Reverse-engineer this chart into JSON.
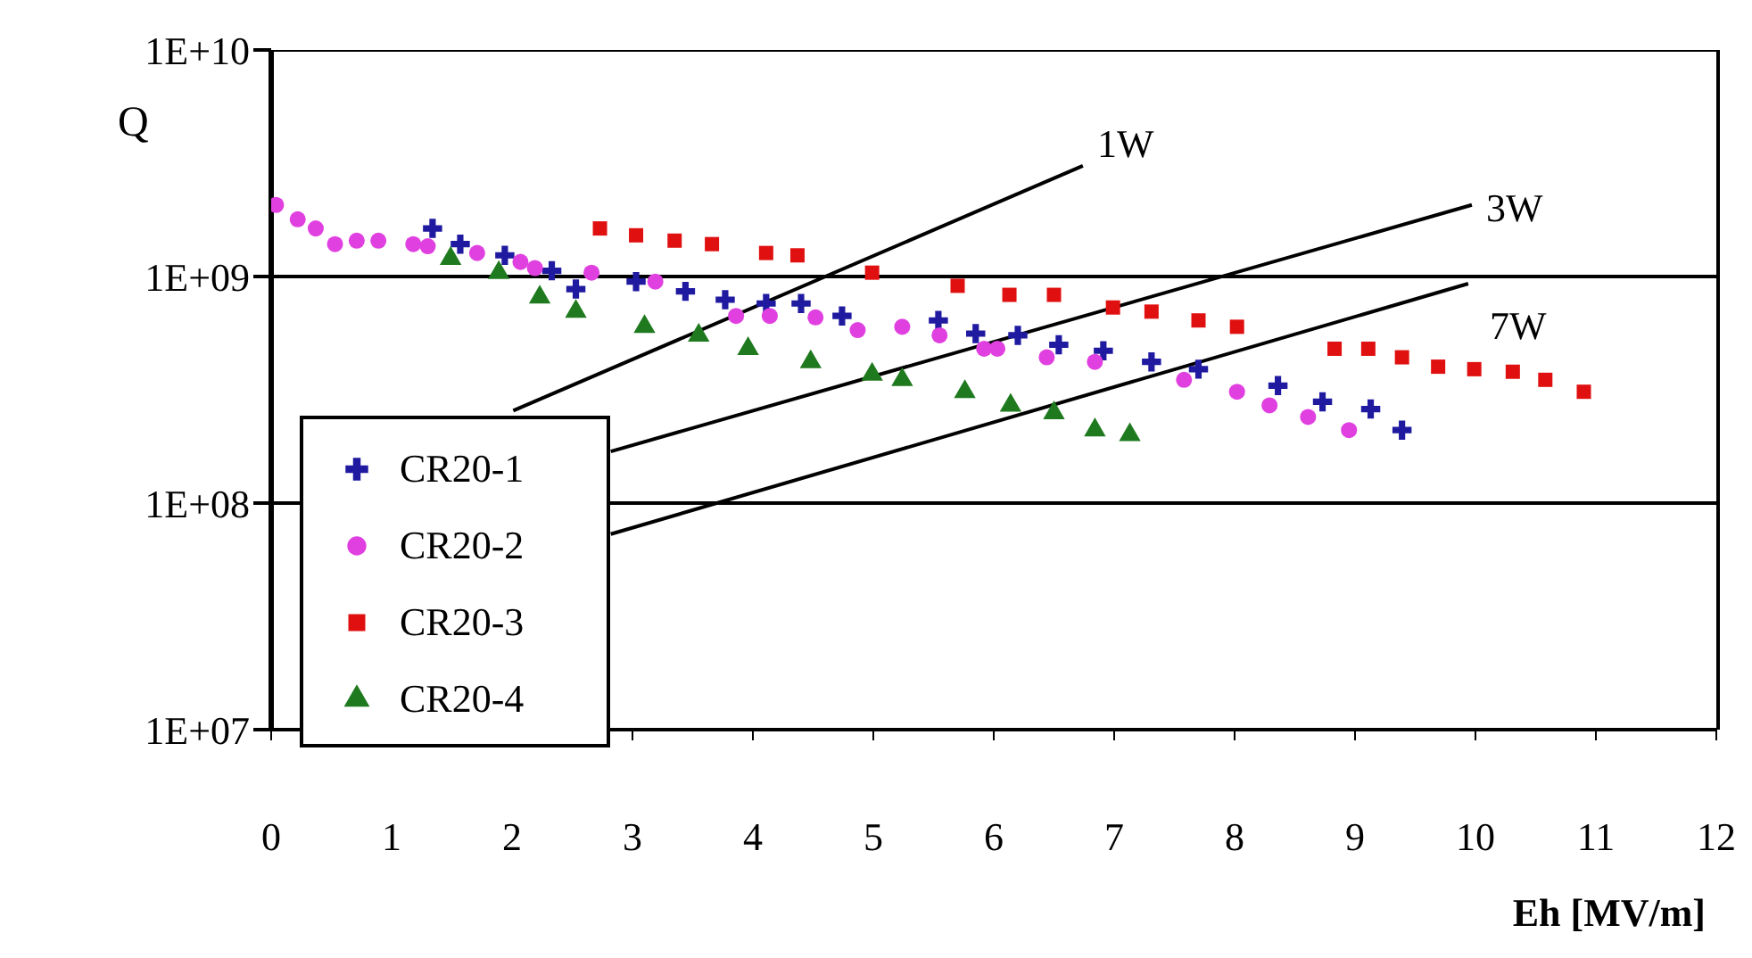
{
  "chart_data": {
    "type": "scatter",
    "xlabel": "Eh [MV/m]",
    "ylabel": "Q",
    "log": "y",
    "grid": "y",
    "legend": "bottom left",
    "xlim": [
      0,
      12
    ],
    "xticks": [
      0,
      1,
      2,
      3,
      4,
      5,
      6,
      7,
      8,
      9,
      10,
      11,
      12
    ],
    "ylim": [
      10000000,
      10000000000
    ],
    "yticks": [
      {
        "value": 10000000,
        "label": "1E+07"
      },
      {
        "value": 100000000,
        "label": "1E+08"
      },
      {
        "value": 1000000000,
        "label": "1E+09"
      },
      {
        "value": 10000000000,
        "label": "1E+10"
      }
    ],
    "series": [
      {
        "name": "CR20-1",
        "color": "#1f1aa0",
        "marker": "cross",
        "x": [
          1.34,
          1.57,
          1.94,
          2.33,
          2.53,
          3.03,
          3.44,
          3.77,
          4.11,
          4.4,
          4.74,
          5.54,
          5.85,
          6.2,
          6.54,
          6.91,
          7.31,
          7.7,
          8.36,
          8.73,
          9.13,
          9.39
        ],
        "values": [
          1630000000,
          1390000000,
          1240000000,
          1060000000,
          880000000,
          950000000,
          860000000,
          790000000,
          760000000,
          760000000,
          670000000,
          640000000,
          560000000,
          550000000,
          500000000,
          470000000,
          420000000,
          390000000,
          330000000,
          280000000,
          260000000,
          210000000
        ]
      },
      {
        "name": "CR20-2",
        "color": "#e040e0",
        "marker": "circle",
        "x": [
          0.04,
          0.22,
          0.37,
          0.53,
          0.71,
          0.89,
          1.18,
          1.3,
          1.71,
          2.07,
          2.19,
          2.66,
          3.19,
          3.86,
          4.14,
          4.52,
          4.87,
          5.24,
          5.55,
          5.92,
          6.03,
          6.44,
          6.84,
          7.58,
          8.02,
          8.29,
          8.61,
          8.95
        ],
        "values": [
          2070000000,
          1790000000,
          1630000000,
          1390000000,
          1440000000,
          1440000000,
          1390000000,
          1360000000,
          1270000000,
          1160000000,
          1090000000,
          1040000000,
          950000000,
          670000000,
          670000000,
          660000000,
          580000000,
          600000000,
          550000000,
          480000000,
          480000000,
          440000000,
          420000000,
          350000000,
          310000000,
          270000000,
          240000000,
          210000000
        ]
      },
      {
        "name": "CR20-3",
        "color": "#e01010",
        "marker": "square",
        "x": [
          2.73,
          3.03,
          3.35,
          3.66,
          4.11,
          4.37,
          4.99,
          5.7,
          6.13,
          6.5,
          6.99,
          7.31,
          7.7,
          8.02,
          8.83,
          9.11,
          9.39,
          9.69,
          9.99,
          10.31,
          10.58,
          10.9
        ],
        "values": [
          1630000000,
          1520000000,
          1440000000,
          1390000000,
          1270000000,
          1240000000,
          1040000000,
          910000000,
          830000000,
          830000000,
          730000000,
          700000000,
          640000000,
          600000000,
          480000000,
          480000000,
          440000000,
          400000000,
          390000000,
          380000000,
          350000000,
          310000000
        ]
      },
      {
        "name": "CR20-4",
        "color": "#1f7a1f",
        "marker": "triangle",
        "x": [
          1.49,
          1.89,
          2.23,
          2.53,
          3.1,
          3.55,
          3.96,
          4.48,
          4.99,
          5.24,
          5.76,
          6.14,
          6.5,
          6.84,
          7.13
        ],
        "values": [
          1200000000,
          1040000000,
          810000000,
          700000000,
          600000000,
          550000000,
          480000000,
          420000000,
          370000000,
          350000000,
          310000000,
          270000000,
          250000000,
          210000000,
          200000000
        ]
      },
      {
        "name": "1W",
        "type": "line",
        "color": "#000000",
        "x": [
          2.01,
          6.74
        ],
        "values": [
          256000000,
          3080000000
        ]
      },
      {
        "name": "3W",
        "type": "line",
        "color": "#000000",
        "x": [
          2.82,
          9.97
        ],
        "values": [
          169000000,
          2070000000
        ]
      },
      {
        "name": "7W",
        "type": "line",
        "color": "#000000",
        "x": [
          2.82,
          9.94
        ],
        "values": [
          73000000,
          930000000
        ]
      }
    ]
  }
}
